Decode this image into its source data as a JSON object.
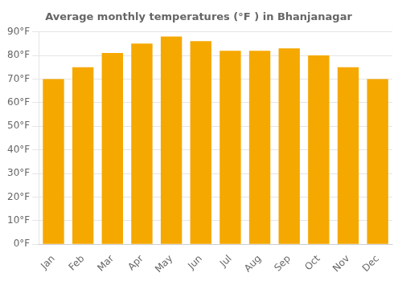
{
  "chart_data": {
    "type": "bar",
    "title": "Average monthly temperatures (°F ) in Bhanjanagar",
    "categories": [
      "Jan",
      "Feb",
      "Mar",
      "Apr",
      "May",
      "Jun",
      "Jul",
      "Aug",
      "Sep",
      "Oct",
      "Nov",
      "Dec"
    ],
    "values": [
      70,
      75,
      81,
      85,
      88,
      86,
      82,
      82,
      83,
      80,
      75,
      70
    ],
    "color": "#F5A800",
    "ylim": [
      0,
      90
    ],
    "yticks": [
      {
        "value": 0,
        "label": "0°F"
      },
      {
        "value": 10,
        "label": "10°F"
      },
      {
        "value": 20,
        "label": "20°F"
      },
      {
        "value": 30,
        "label": "30°F"
      },
      {
        "value": 40,
        "label": "40°F"
      },
      {
        "value": 50,
        "label": "50°F"
      },
      {
        "value": 60,
        "label": "60°F"
      },
      {
        "value": 70,
        "label": "70°F"
      },
      {
        "value": 80,
        "label": "80°F"
      },
      {
        "value": 90,
        "label": "90°F"
      }
    ],
    "grid": true
  }
}
